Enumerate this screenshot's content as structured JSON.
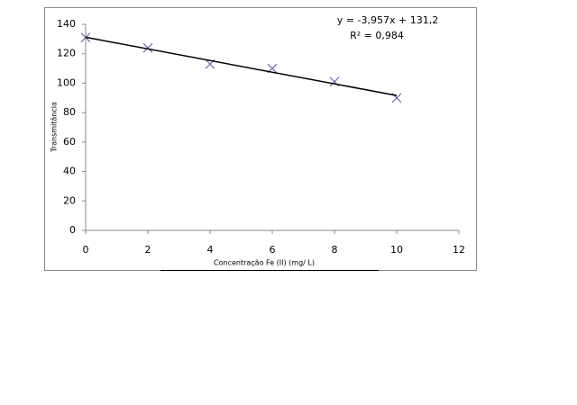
{
  "chart_data": {
    "type": "scatter",
    "x_label": "Concentração Fe (II) (mg/ L)",
    "y_label": "Transmitância",
    "series": [
      {
        "name": "Transmitância",
        "color": "#6e6eb8",
        "x": [
          0,
          2,
          4,
          6,
          8,
          10
        ],
        "values": [
          131,
          124,
          113,
          110,
          101,
          90
        ]
      }
    ],
    "trendline": {
      "slope": -3.957,
      "intercept": 131.2,
      "color": "#000000",
      "equation": "y = -3,957x + 131,2",
      "r_squared": "R² = 0,984"
    },
    "xlim": [
      0,
      12
    ],
    "xticks": [
      0,
      2,
      4,
      6,
      8,
      10,
      12
    ],
    "ylim": [
      0,
      140
    ],
    "yticks": [
      0,
      20,
      40,
      60,
      80,
      100,
      120,
      140
    ],
    "grid": false
  }
}
